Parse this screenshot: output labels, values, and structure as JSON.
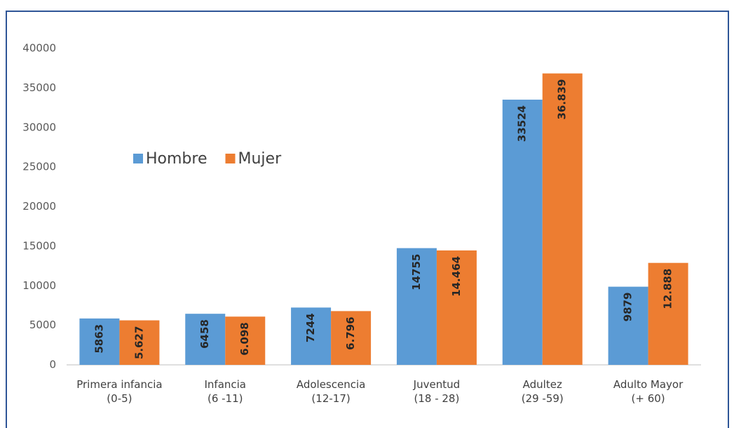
{
  "chart_data": {
    "type": "bar",
    "categories": [
      "Primera infancia\n(0-5)",
      "Infancia\n(6 -11)",
      "Adolescencia\n(12-17)",
      "Juventud\n(18 - 28)",
      "Adultez\n(29 -59)",
      "Adulto Mayor\n(+ 60)"
    ],
    "series": [
      {
        "name": "Hombre",
        "color": "#5b9bd5",
        "values": [
          5863,
          6458,
          7244,
          14755,
          33524,
          9879
        ]
      },
      {
        "name": "Mujer",
        "color": "#ed7d31",
        "values": [
          5627,
          6098,
          6796,
          14464,
          36839,
          12888
        ],
        "value_labels": [
          "5.627",
          "6.098",
          "6.796",
          "14.464",
          "36.839",
          "12.888"
        ]
      }
    ],
    "ylim": [
      0,
      40000
    ],
    "yticks": [
      0,
      5000,
      10000,
      15000,
      20000,
      25000,
      30000,
      35000,
      40000
    ],
    "grid": false,
    "legend": "top-left"
  }
}
